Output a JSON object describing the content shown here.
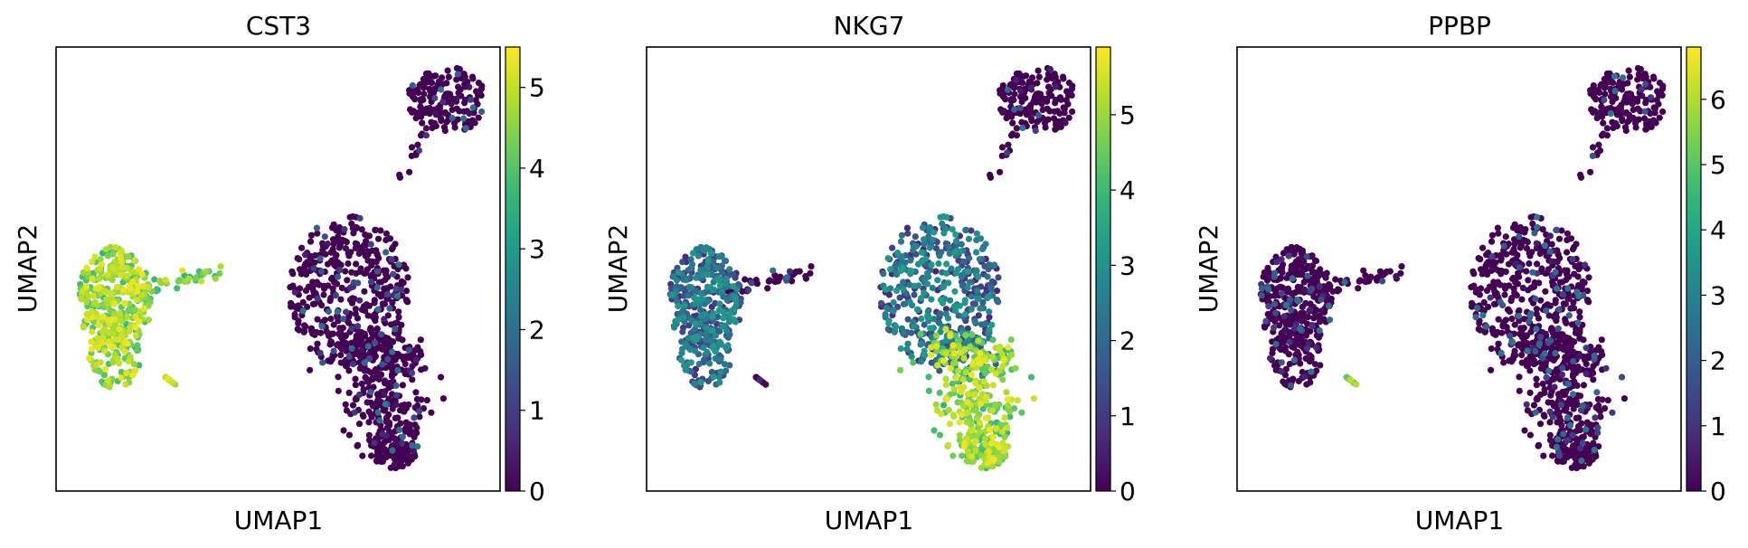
{
  "colormap": "viridis",
  "chart_data": [
    {
      "type": "scatter",
      "title": "CST3",
      "xlabel": "UMAP1",
      "ylabel": "UMAP2",
      "colorbar": {
        "min": 0,
        "max": 5.5,
        "ticks": [
          0,
          1,
          2,
          3,
          4,
          5
        ]
      },
      "high_regions": [
        "left-cluster",
        "left-arm",
        "small-tail"
      ],
      "mid_regions": []
    },
    {
      "type": "scatter",
      "title": "NKG7",
      "xlabel": "UMAP1",
      "ylabel": "UMAP2",
      "colorbar": {
        "min": 0,
        "max": 5.9,
        "ticks": [
          0,
          1,
          2,
          3,
          4,
          5
        ]
      },
      "high_regions": [
        "right-lower"
      ],
      "mid_regions": [
        "left-cluster",
        "right-big"
      ]
    },
    {
      "type": "scatter",
      "title": "PPBP",
      "xlabel": "UMAP1",
      "ylabel": "UMAP2",
      "colorbar": {
        "min": 0,
        "max": 6.8,
        "ticks": [
          0,
          1,
          2,
          3,
          4,
          5,
          6
        ]
      },
      "high_regions": [
        "small-tail"
      ],
      "mid_regions": []
    }
  ]
}
